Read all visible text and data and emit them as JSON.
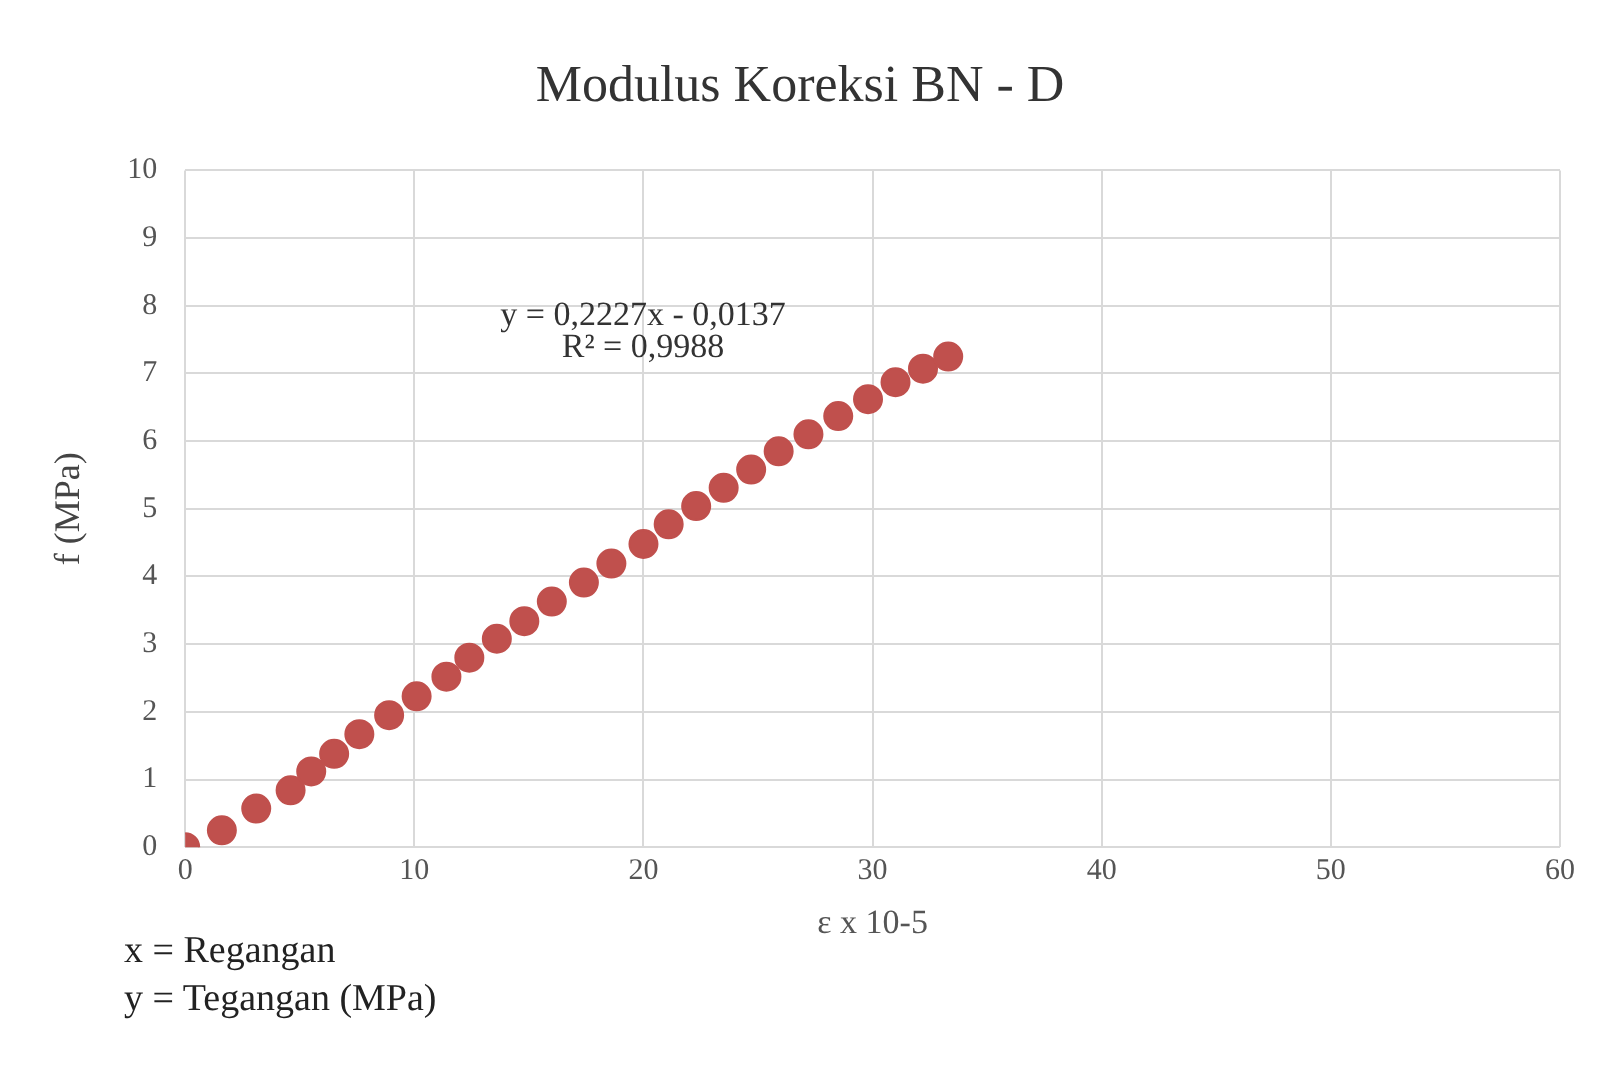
{
  "chart_data": {
    "type": "scatter",
    "title": "Modulus Koreksi BN - D",
    "xlabel": "ε x 10-5",
    "ylabel": "f (MPa)",
    "x": [
      0,
      1.6,
      3.1,
      4.6,
      5.5,
      6.5,
      7.6,
      8.9,
      10.1,
      11.4,
      12.4,
      13.6,
      14.8,
      16.0,
      17.4,
      18.6,
      20.0,
      21.1,
      22.3,
      23.5,
      24.7,
      25.9,
      27.2,
      28.5,
      29.8,
      31.0,
      32.2,
      33.3
    ],
    "series": [
      {
        "color": "#c0504d",
        "values": [
          0,
          0.25,
          0.57,
          0.84,
          1.12,
          1.38,
          1.67,
          1.95,
          2.23,
          2.52,
          2.8,
          3.08,
          3.34,
          3.63,
          3.91,
          4.19,
          4.48,
          4.77,
          5.04,
          5.31,
          5.58,
          5.85,
          6.1,
          6.37,
          6.62,
          6.87,
          7.07,
          7.25
        ]
      }
    ],
    "xlim": [
      0,
      60
    ],
    "xticks": [
      0,
      10,
      20,
      30,
      40,
      50,
      60
    ],
    "ylim": [
      0,
      10
    ],
    "yticks": [
      0,
      1,
      2,
      3,
      4,
      5,
      6,
      7,
      8,
      9,
      10
    ],
    "grid": true,
    "legend": false,
    "marker": "circle",
    "annotations": [
      "y = 0,2227x - 0,0137",
      "R² = 0,9988",
      "x = Regangan",
      "y = Tegangan (MPa)"
    ]
  }
}
